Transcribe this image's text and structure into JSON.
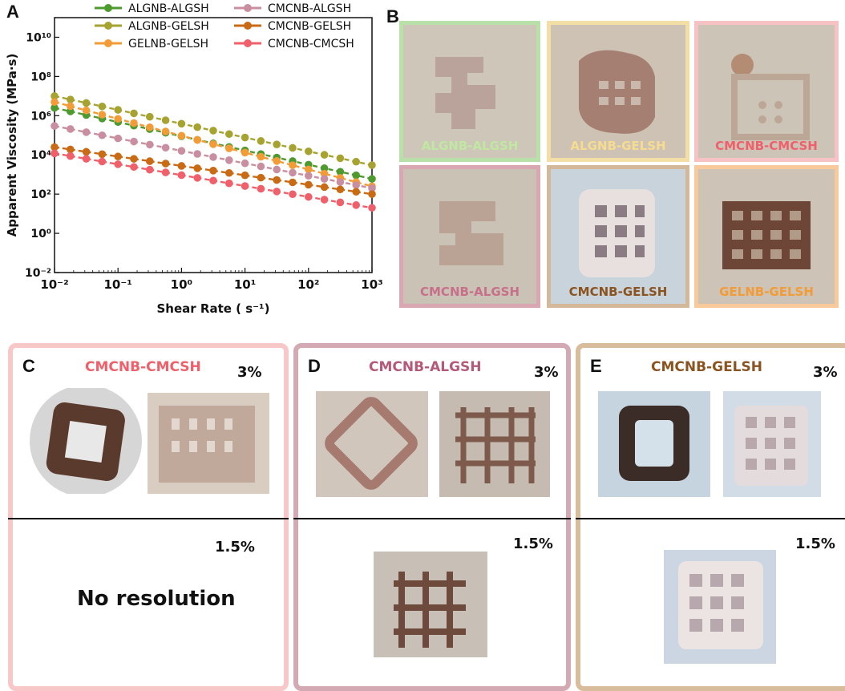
{
  "panel_letters": {
    "a": "A",
    "b": "B",
    "c": "C",
    "d": "D",
    "e": "E"
  },
  "chart_data": {
    "type": "line",
    "xlabel": "Shear Rate ( s⁻¹)",
    "ylabel": "Apparent Viscosity (MPa·s)",
    "x_scale": "log",
    "y_scale": "log",
    "xlim": [
      0.01,
      1000
    ],
    "ylim": [
      0.01,
      100000000000
    ],
    "x_ticks": [
      "10⁻²",
      "10⁻¹",
      "10⁰",
      "10¹",
      "10²",
      "10³"
    ],
    "y_ticks": [
      "10⁻²",
      "10⁰",
      "10²",
      "10⁴",
      "10⁶",
      "10⁸",
      "10¹⁰"
    ],
    "legend_position": "top-right",
    "series": [
      {
        "name": "ALGNB-ALGSH",
        "color": "#4e9a2f",
        "x": [
          0.01,
          1000
        ],
        "y": [
          2500000,
          600
        ]
      },
      {
        "name": "ALGNB-GELSH",
        "color": "#a6a330",
        "x": [
          0.01,
          1000
        ],
        "y": [
          10000000,
          3000
        ]
      },
      {
        "name": "GELNB-GELSH",
        "color": "#f29c38",
        "x": [
          0.01,
          1000
        ],
        "y": [
          5000000,
          250
        ]
      },
      {
        "name": "CMCNB-ALGSH",
        "color": "#c98fa0",
        "x": [
          0.01,
          1000
        ],
        "y": [
          300000,
          200
        ]
      },
      {
        "name": "CMCNB-GELSH",
        "color": "#c96a14",
        "x": [
          0.01,
          1000
        ],
        "y": [
          25000,
          100
        ]
      },
      {
        "name": "CMCNB-CMCSH",
        "color": "#f0606a",
        "x": [
          0.01,
          1000
        ],
        "y": [
          12000,
          20
        ]
      }
    ]
  },
  "panel_b": {
    "tiles": [
      {
        "label": "ALGNB-ALGSH",
        "color": "#b8e0a8",
        "text_color": "#bfe8a0"
      },
      {
        "label": "ALGNB-GELSH",
        "color": "#f3dfa6",
        "text_color": "#f6dc90"
      },
      {
        "label": "CMCNB-CMCSH",
        "color": "#f7c2c4",
        "text_color": "#f0606a"
      },
      {
        "label": "CMCNB-ALGSH",
        "color": "#d8a7b1",
        "text_color": "#c7708a"
      },
      {
        "label": "CMCNB-GELSH",
        "color": "#d3b999",
        "text_color": "#8a5420"
      },
      {
        "label": "GELNB-GELSH",
        "color": "#f8c99b",
        "text_color": "#f29c38"
      }
    ]
  },
  "panel_c": {
    "title": "CMCNB-CMCSH",
    "title_color": "#f0606a",
    "border": "#f8c8c8",
    "top_pct": "3%",
    "bottom_pct": "1.5%",
    "note": "No resolution"
  },
  "panel_d": {
    "title": "CMCNB-ALGSH",
    "title_color": "#b45a78",
    "border": "#d3a9b3",
    "top_pct": "3%",
    "bottom_pct": "1.5%"
  },
  "panel_e": {
    "title": "CMCNB-GELSH",
    "title_color": "#8a5420",
    "border": "#d8bd9c",
    "top_pct": "3%",
    "bottom_pct": "1.5%"
  }
}
